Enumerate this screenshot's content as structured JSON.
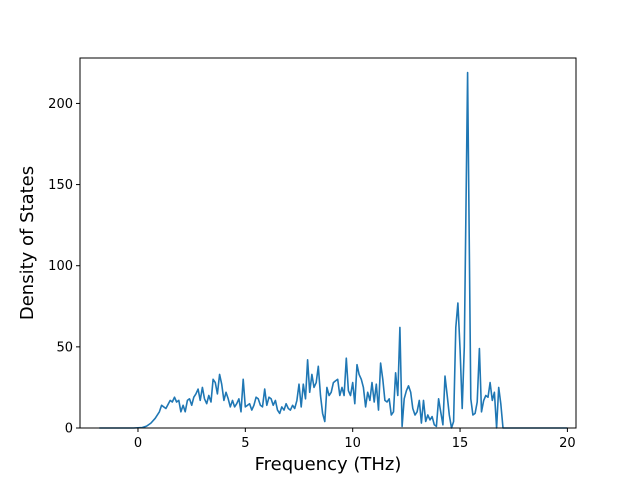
{
  "chart_data": {
    "type": "line",
    "title": "",
    "xlabel": "Frequency (THz)",
    "ylabel": "Density of States",
    "xlim": [
      -2.7,
      20.4
    ],
    "ylim": [
      0,
      228
    ],
    "x_ticks": [
      0,
      5,
      10,
      15,
      20
    ],
    "y_ticks": [
      0,
      50,
      100,
      150,
      200
    ],
    "grid": false,
    "legend": "none",
    "series": [
      {
        "color": "#1f77b4",
        "points": [
          [
            -1.8,
            0
          ],
          [
            -1.0,
            0
          ],
          [
            -0.2,
            0
          ],
          [
            0.2,
            0.3
          ],
          [
            0.4,
            1.2
          ],
          [
            0.6,
            3
          ],
          [
            0.8,
            6
          ],
          [
            1.0,
            10
          ],
          [
            1.1,
            14
          ],
          [
            1.3,
            12
          ],
          [
            1.5,
            17
          ],
          [
            1.6,
            16
          ],
          [
            1.7,
            19
          ],
          [
            1.8,
            16
          ],
          [
            1.9,
            17
          ],
          [
            2.0,
            10
          ],
          [
            2.1,
            14
          ],
          [
            2.2,
            10
          ],
          [
            2.3,
            17
          ],
          [
            2.4,
            18
          ],
          [
            2.5,
            14
          ],
          [
            2.6,
            19
          ],
          [
            2.7,
            21
          ],
          [
            2.8,
            24
          ],
          [
            2.9,
            17
          ],
          [
            3.0,
            25
          ],
          [
            3.1,
            18
          ],
          [
            3.2,
            15
          ],
          [
            3.3,
            20
          ],
          [
            3.4,
            16
          ],
          [
            3.5,
            30
          ],
          [
            3.6,
            28
          ],
          [
            3.7,
            21
          ],
          [
            3.8,
            33
          ],
          [
            3.9,
            27
          ],
          [
            4.0,
            17
          ],
          [
            4.1,
            22
          ],
          [
            4.2,
            18
          ],
          [
            4.3,
            13
          ],
          [
            4.4,
            17
          ],
          [
            4.5,
            13
          ],
          [
            4.6,
            15
          ],
          [
            4.7,
            18
          ],
          [
            4.8,
            10
          ],
          [
            4.9,
            30
          ],
          [
            5.0,
            13
          ],
          [
            5.1,
            14
          ],
          [
            5.2,
            15
          ],
          [
            5.3,
            11
          ],
          [
            5.4,
            14
          ],
          [
            5.5,
            19
          ],
          [
            5.6,
            18
          ],
          [
            5.7,
            14
          ],
          [
            5.8,
            13
          ],
          [
            5.9,
            24
          ],
          [
            6.0,
            14
          ],
          [
            6.1,
            19
          ],
          [
            6.2,
            18
          ],
          [
            6.3,
            14
          ],
          [
            6.4,
            17
          ],
          [
            6.5,
            11
          ],
          [
            6.6,
            9
          ],
          [
            6.7,
            13
          ],
          [
            6.8,
            11
          ],
          [
            6.9,
            15
          ],
          [
            7.0,
            12
          ],
          [
            7.1,
            11
          ],
          [
            7.2,
            14
          ],
          [
            7.3,
            12
          ],
          [
            7.4,
            17
          ],
          [
            7.5,
            27
          ],
          [
            7.6,
            13
          ],
          [
            7.7,
            27
          ],
          [
            7.8,
            18
          ],
          [
            7.9,
            42
          ],
          [
            8.0,
            22
          ],
          [
            8.1,
            33
          ],
          [
            8.2,
            25
          ],
          [
            8.3,
            28
          ],
          [
            8.4,
            38
          ],
          [
            8.5,
            20
          ],
          [
            8.6,
            9
          ],
          [
            8.7,
            4
          ],
          [
            8.8,
            25
          ],
          [
            8.9,
            20
          ],
          [
            9.0,
            22
          ],
          [
            9.1,
            28
          ],
          [
            9.2,
            29
          ],
          [
            9.3,
            30
          ],
          [
            9.4,
            20
          ],
          [
            9.5,
            25
          ],
          [
            9.6,
            20
          ],
          [
            9.7,
            43
          ],
          [
            9.8,
            23
          ],
          [
            9.9,
            20
          ],
          [
            10.0,
            28
          ],
          [
            10.1,
            15
          ],
          [
            10.2,
            39
          ],
          [
            10.3,
            33
          ],
          [
            10.4,
            30
          ],
          [
            10.5,
            25
          ],
          [
            10.6,
            13
          ],
          [
            10.7,
            22
          ],
          [
            10.8,
            17
          ],
          [
            10.9,
            28
          ],
          [
            11.0,
            16
          ],
          [
            11.1,
            27
          ],
          [
            11.2,
            11
          ],
          [
            11.3,
            40
          ],
          [
            11.4,
            30
          ],
          [
            11.5,
            17
          ],
          [
            11.6,
            16
          ],
          [
            11.7,
            18
          ],
          [
            11.8,
            8
          ],
          [
            11.9,
            10
          ],
          [
            12.0,
            34
          ],
          [
            12.1,
            20
          ],
          [
            12.2,
            62
          ],
          [
            12.3,
            1
          ],
          [
            12.4,
            18
          ],
          [
            12.5,
            23
          ],
          [
            12.6,
            26
          ],
          [
            12.7,
            22
          ],
          [
            12.8,
            12
          ],
          [
            12.9,
            8
          ],
          [
            13.0,
            10
          ],
          [
            13.1,
            17
          ],
          [
            13.2,
            3
          ],
          [
            13.3,
            17
          ],
          [
            13.4,
            4
          ],
          [
            13.5,
            8
          ],
          [
            13.6,
            5
          ],
          [
            13.7,
            7
          ],
          [
            13.8,
            2
          ],
          [
            13.9,
            1
          ],
          [
            14.0,
            18
          ],
          [
            14.1,
            10
          ],
          [
            14.2,
            2
          ],
          [
            14.3,
            32
          ],
          [
            14.4,
            20
          ],
          [
            14.5,
            8
          ],
          [
            14.6,
            0
          ],
          [
            14.7,
            4
          ],
          [
            14.8,
            62
          ],
          [
            14.9,
            77
          ],
          [
            15.0,
            48
          ],
          [
            15.1,
            12
          ],
          [
            15.2,
            50
          ],
          [
            15.35,
            219
          ],
          [
            15.5,
            18
          ],
          [
            15.6,
            8
          ],
          [
            15.7,
            9
          ],
          [
            15.8,
            16
          ],
          [
            15.9,
            49
          ],
          [
            16.0,
            10
          ],
          [
            16.1,
            17
          ],
          [
            16.2,
            20
          ],
          [
            16.3,
            19
          ],
          [
            16.4,
            28
          ],
          [
            16.5,
            17
          ],
          [
            16.6,
            22
          ],
          [
            16.7,
            0
          ],
          [
            16.8,
            25
          ],
          [
            16.9,
            15
          ],
          [
            17.0,
            0
          ],
          [
            17.2,
            0
          ],
          [
            17.4,
            0
          ],
          [
            17.8,
            0
          ],
          [
            18.5,
            0
          ],
          [
            19.5,
            0
          ],
          [
            20.0,
            0
          ]
        ]
      }
    ]
  }
}
